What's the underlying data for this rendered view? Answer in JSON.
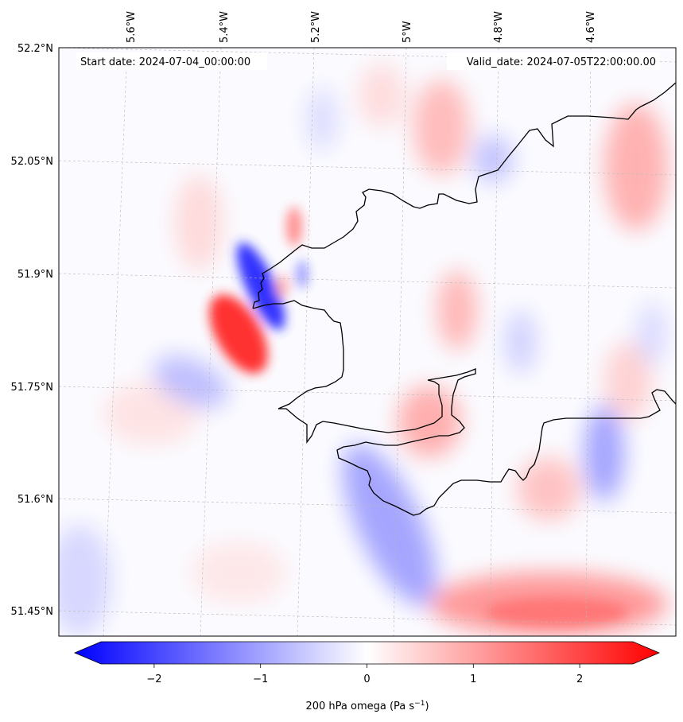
{
  "map": {
    "start_label": "Start date: 2024-07-04_00:00:00",
    "valid_label": "Valid_date: 2024-07-05T22:00:00.00",
    "lon_labels": [
      "5.6°W",
      "5.4°W",
      "5.2°W",
      "5°W",
      "4.8°W",
      "4.6°W"
    ],
    "lat_labels": [
      "52.2°N",
      "52.05°N",
      "51.9°N",
      "51.75°N",
      "51.6°N",
      "51.45°N"
    ],
    "field_colors": {
      "negative": "#0000ff",
      "neutral": "#ffffff",
      "positive": "#ff0000",
      "coast": "#000000"
    }
  },
  "colorbar": {
    "title_prefix": "200 hPa omega (Pa s",
    "title_exp": "−1",
    "title_suffix": ")",
    "ticks": [
      {
        "value": -2,
        "label": "−2"
      },
      {
        "value": -1,
        "label": "−1"
      },
      {
        "value": 0,
        "label": "0"
      },
      {
        "value": 1,
        "label": "1"
      },
      {
        "value": 2,
        "label": "2"
      }
    ],
    "range": [
      -2.5,
      2.5
    ]
  }
}
